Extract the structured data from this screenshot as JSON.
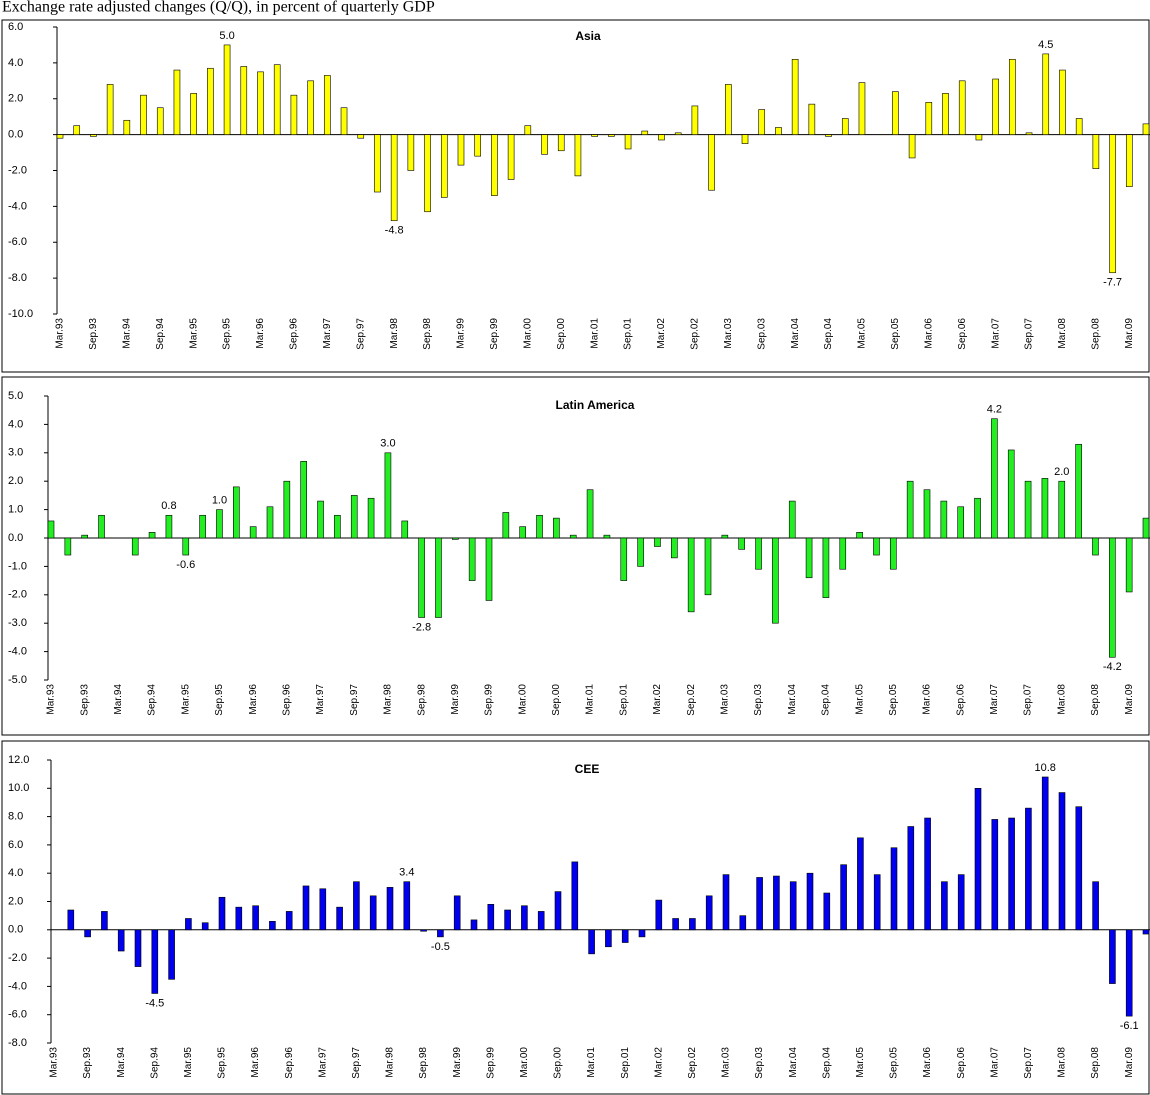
{
  "heading": "Exchange rate adjusted changes (Q/Q), in percent of quarterly GDP",
  "chart_data": [
    {
      "type": "bar",
      "title": "Asia",
      "color": "#ffff00",
      "categories": [
        "Mar.93",
        null,
        "Sep.93",
        null,
        "Mar.94",
        null,
        "Sep.94",
        null,
        "Mar.95",
        null,
        "Sep.95",
        null,
        "Mar.96",
        null,
        "Sep.96",
        null,
        "Mar.97",
        null,
        "Sep.97",
        null,
        "Mar.98",
        null,
        "Sep.98",
        null,
        "Mar.99",
        null,
        "Sep.99",
        null,
        "Mar.00",
        null,
        "Sep.00",
        null,
        "Mar.01",
        null,
        "Sep.01",
        null,
        "Mar.02",
        null,
        "Sep.02",
        null,
        "Mar.03",
        null,
        "Sep.03",
        null,
        "Mar.04",
        null,
        "Sep.04",
        null,
        "Mar.05",
        null,
        "Sep.05",
        null,
        "Mar.06",
        null,
        "Sep.06",
        null,
        "Mar.07",
        null,
        "Sep.07",
        null,
        "Mar.08",
        null,
        "Sep.08",
        null,
        "Mar.09",
        null
      ],
      "values": [
        -0.2,
        0.5,
        -0.1,
        2.8,
        0.8,
        2.2,
        1.5,
        3.6,
        2.3,
        3.7,
        5.0,
        3.8,
        3.5,
        3.9,
        2.2,
        3.0,
        3.3,
        1.5,
        -0.2,
        -3.2,
        -4.8,
        -2.0,
        -4.3,
        -3.5,
        -1.7,
        -1.2,
        -3.4,
        -2.5,
        0.5,
        -1.1,
        -0.9,
        -2.3,
        -0.1,
        -0.1,
        -0.8,
        0.2,
        -0.3,
        0.1,
        1.6,
        -3.1,
        2.8,
        -0.5,
        1.4,
        0.4,
        4.2,
        1.7,
        -0.1,
        0.9,
        2.9,
        0.0,
        2.4,
        -1.3,
        1.8,
        2.3,
        3.0,
        -0.3,
        3.1,
        4.2,
        0.1,
        4.5,
        3.6,
        0.9,
        -1.9,
        -7.7,
        -2.9,
        0.6
      ],
      "value_labels": [
        null,
        null,
        null,
        null,
        null,
        null,
        null,
        null,
        null,
        null,
        "5.0",
        null,
        null,
        null,
        null,
        null,
        null,
        null,
        null,
        null,
        "-4.8",
        null,
        null,
        null,
        null,
        null,
        null,
        null,
        null,
        null,
        null,
        null,
        null,
        null,
        null,
        null,
        null,
        null,
        null,
        null,
        null,
        null,
        null,
        null,
        null,
        null,
        null,
        null,
        null,
        null,
        null,
        null,
        null,
        null,
        null,
        null,
        null,
        null,
        null,
        "4.5",
        null,
        null,
        null,
        "-7.7",
        null,
        null
      ],
      "ylim": [
        -10,
        6
      ],
      "yticks": [
        {
          "value": -10,
          "label": "-10.0"
        },
        {
          "value": -8,
          "label": "-8.0"
        },
        {
          "value": -6,
          "label": "-6.0"
        },
        {
          "value": -4,
          "label": "-4.0"
        },
        {
          "value": -2,
          "label": "-2.0"
        },
        {
          "value": 0,
          "label": "0.0"
        },
        {
          "value": 2,
          "label": "2.0"
        },
        {
          "value": 4,
          "label": "4.0"
        },
        {
          "value": 6,
          "label": "6.0"
        }
      ]
    },
    {
      "type": "bar",
      "title": "Latin America",
      "color": "#22ee22",
      "categories": [
        "Mar.93",
        null,
        "Sep.93",
        null,
        "Mar.94",
        null,
        "Sep.94",
        null,
        "Mar.95",
        null,
        "Sep.95",
        null,
        "Mar.96",
        null,
        "Sep.96",
        null,
        "Mar.97",
        null,
        "Sep.97",
        null,
        "Mar.98",
        null,
        "Sep.98",
        null,
        "Mar.99",
        null,
        "Sep.99",
        null,
        "Mar.00",
        null,
        "Sep.00",
        null,
        "Mar.01",
        null,
        "Sep.01",
        null,
        "Mar.02",
        null,
        "Sep.02",
        null,
        "Mar.03",
        null,
        "Sep.03",
        null,
        "Mar.04",
        null,
        "Sep.04",
        null,
        "Mar.05",
        null,
        "Sep.05",
        null,
        "Mar.06",
        null,
        "Sep.06",
        null,
        "Mar.07",
        null,
        "Sep.07",
        null,
        "Mar.08",
        null,
        "Sep.08",
        null,
        "Mar.09",
        null
      ],
      "values": [
        0.6,
        -0.6,
        0.1,
        0.8,
        0.0,
        -0.6,
        0.2,
        0.8,
        -0.6,
        0.8,
        1.0,
        1.8,
        0.4,
        1.1,
        2.0,
        2.7,
        1.3,
        0.8,
        1.5,
        1.4,
        3.0,
        0.6,
        -2.8,
        -2.8,
        -0.05,
        -1.5,
        -2.2,
        0.9,
        0.4,
        0.8,
        0.7,
        0.1,
        1.7,
        0.1,
        -1.5,
        -1.0,
        -0.3,
        -0.7,
        -2.6,
        -2.0,
        0.1,
        -0.4,
        -1.1,
        -3.0,
        1.3,
        -1.4,
        -2.1,
        -1.1,
        0.2,
        -0.6,
        -1.1,
        2.0,
        1.7,
        1.3,
        1.1,
        1.4,
        4.2,
        3.1,
        2.0,
        2.1,
        2.0,
        3.3,
        -0.6,
        -4.2,
        -1.9,
        0.7
      ],
      "value_labels": [
        null,
        null,
        null,
        null,
        null,
        null,
        null,
        "0.8",
        "-0.6",
        null,
        "1.0",
        null,
        null,
        null,
        null,
        null,
        null,
        null,
        null,
        null,
        "3.0",
        null,
        "-2.8",
        null,
        null,
        null,
        null,
        null,
        null,
        null,
        null,
        null,
        null,
        null,
        null,
        null,
        null,
        null,
        null,
        null,
        null,
        null,
        null,
        null,
        null,
        null,
        null,
        null,
        null,
        null,
        null,
        null,
        null,
        null,
        null,
        null,
        "4.2",
        null,
        null,
        null,
        "2.0",
        null,
        null,
        "-4.2",
        null,
        null
      ],
      "ylim": [
        -5,
        5
      ],
      "yticks": [
        {
          "value": -5,
          "label": "-5.0"
        },
        {
          "value": -4,
          "label": "-4.0"
        },
        {
          "value": -3,
          "label": "-3.0"
        },
        {
          "value": -2,
          "label": "-2.0"
        },
        {
          "value": -1,
          "label": "-1.0"
        },
        {
          "value": 0,
          "label": "0.0"
        },
        {
          "value": 1,
          "label": "1.0"
        },
        {
          "value": 2,
          "label": "2.0"
        },
        {
          "value": 3,
          "label": "3.0"
        },
        {
          "value": 4,
          "label": "4.0"
        },
        {
          "value": 5,
          "label": "5.0"
        }
      ]
    },
    {
      "type": "bar",
      "title": "CEE",
      "color": "#0000ee",
      "categories": [
        "Mar.93",
        null,
        "Sep.93",
        null,
        "Mar.94",
        null,
        "Sep.94",
        null,
        "Mar.95",
        null,
        "Sep.95",
        null,
        "Mar.96",
        null,
        "Sep.96",
        null,
        "Mar.97",
        null,
        "Sep.97",
        null,
        "Mar.98",
        null,
        "Sep.98",
        null,
        "Mar.99",
        null,
        "Sep.99",
        null,
        "Mar.00",
        null,
        "Sep.00",
        null,
        "Mar.01",
        null,
        "Sep.01",
        null,
        "Mar.02",
        null,
        "Sep.02",
        null,
        "Mar.03",
        null,
        "Sep.03",
        null,
        "Mar.04",
        null,
        "Sep.04",
        null,
        "Mar.05",
        null,
        "Sep.05",
        null,
        "Mar.06",
        null,
        "Sep.06",
        null,
        "Mar.07",
        null,
        "Sep.07",
        null,
        "Mar.08",
        null,
        "Sep.08",
        null,
        "Mar.09",
        null
      ],
      "values": [
        0.0,
        1.4,
        -0.5,
        1.3,
        -1.5,
        -2.6,
        -4.5,
        -3.5,
        0.8,
        0.5,
        2.3,
        1.6,
        1.7,
        0.6,
        1.3,
        3.1,
        2.9,
        1.6,
        3.4,
        2.4,
        3.0,
        3.4,
        -0.1,
        -0.5,
        2.4,
        0.7,
        1.8,
        1.4,
        1.7,
        1.3,
        2.7,
        4.8,
        -1.7,
        -1.2,
        -0.9,
        -0.5,
        2.1,
        0.8,
        0.8,
        2.4,
        3.9,
        1.0,
        3.7,
        3.8,
        3.4,
        4.0,
        2.6,
        4.6,
        6.5,
        3.9,
        5.8,
        7.3,
        7.9,
        3.4,
        3.9,
        10.0,
        7.8,
        7.9,
        8.6,
        10.8,
        9.7,
        8.7,
        3.4,
        -3.8,
        -6.1,
        -0.3
      ],
      "value_labels": [
        null,
        null,
        null,
        null,
        null,
        null,
        "-4.5",
        null,
        null,
        null,
        null,
        null,
        null,
        null,
        null,
        null,
        null,
        null,
        null,
        null,
        null,
        "3.4",
        null,
        "-0.5",
        null,
        null,
        null,
        null,
        null,
        null,
        null,
        null,
        null,
        null,
        null,
        null,
        null,
        null,
        null,
        null,
        null,
        null,
        null,
        null,
        null,
        null,
        null,
        null,
        null,
        null,
        null,
        null,
        null,
        null,
        null,
        null,
        null,
        null,
        null,
        "10.8",
        null,
        null,
        null,
        null,
        "-6.1",
        null
      ],
      "ylim": [
        -8,
        12
      ],
      "yticks": [
        {
          "value": -8,
          "label": "-8.0"
        },
        {
          "value": -6,
          "label": "-6.0"
        },
        {
          "value": -4,
          "label": "-4.0"
        },
        {
          "value": -2,
          "label": "-2.0"
        },
        {
          "value": 0,
          "label": "0.0"
        },
        {
          "value": 2,
          "label": "2.0"
        },
        {
          "value": 4,
          "label": "4.0"
        },
        {
          "value": 6,
          "label": "6.0"
        },
        {
          "value": 8,
          "label": "8.0"
        },
        {
          "value": 10,
          "label": "10.0"
        },
        {
          "value": 12,
          "label": "12.0"
        }
      ]
    }
  ]
}
